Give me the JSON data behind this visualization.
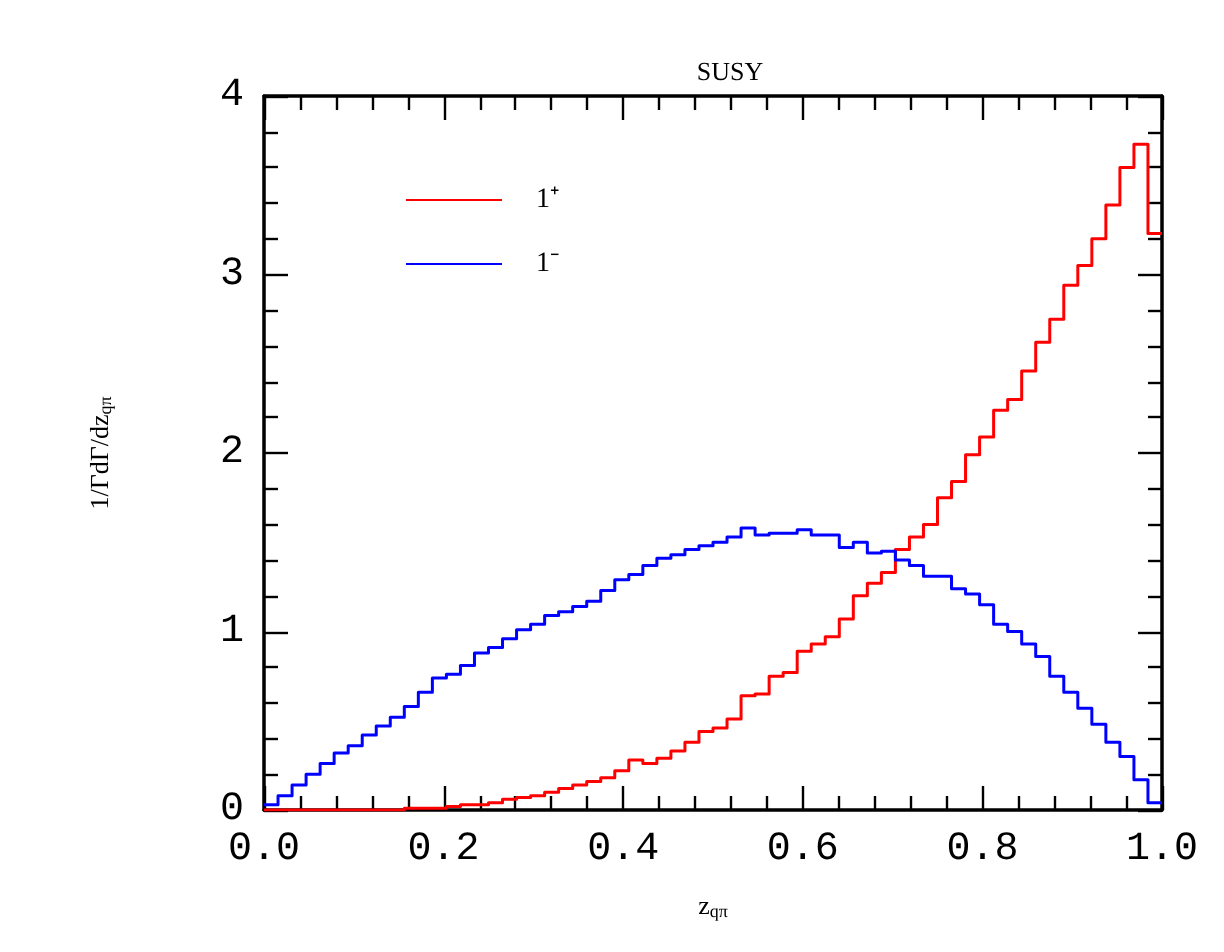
{
  "chart_data": {
    "type": "histogram",
    "title": "SUSY",
    "xlabel": "z$_{qπ}$",
    "ylabel": "1/ΓdΓ/dz$_{qπ}$",
    "bins": [
      0,
      0.015625,
      0.03125,
      0.046875,
      0.0625,
      0.078125,
      0.09375,
      0.109375,
      0.125,
      0.140625,
      0.15625,
      0.171875,
      0.1875,
      0.203125,
      0.21875,
      0.234375,
      0.25,
      0.265625,
      0.28125,
      0.296875,
      0.3125,
      0.328125,
      0.34375,
      0.359375,
      0.375,
      0.390625,
      0.40625,
      0.421875,
      0.4375,
      0.453125,
      0.46875,
      0.484375,
      0.5,
      0.515625,
      0.53125,
      0.546875,
      0.5625,
      0.578125,
      0.59375,
      0.609375,
      0.625,
      0.640625,
      0.65625,
      0.671875,
      0.6875,
      0.703125,
      0.71875,
      0.734375,
      0.75,
      0.765625,
      0.78125,
      0.796875,
      0.8125,
      0.828125,
      0.84375,
      0.859375,
      0.875,
      0.890625,
      0.90625,
      0.921875,
      0.9375,
      0.953125,
      0.96875,
      0.984375,
      1
    ],
    "series": [
      {
        "name": "1⁺",
        "color": "#ff0000",
        "values": [
          0,
          0,
          0,
          0,
          0,
          0,
          0,
          0,
          0,
          0,
          0.01,
          0.01,
          0.01,
          0.02,
          0.03,
          0.03,
          0.04,
          0.06,
          0.07,
          0.08,
          0.1,
          0.12,
          0.14,
          0.16,
          0.18,
          0.22,
          0.28,
          0.26,
          0.29,
          0.33,
          0.38,
          0.44,
          0.46,
          0.51,
          0.64,
          0.65,
          0.75,
          0.77,
          0.89,
          0.93,
          0.97,
          1.07,
          1.2,
          1.27,
          1.33,
          1.46,
          1.53,
          1.6,
          1.75,
          1.84,
          1.99,
          2.09,
          2.24,
          2.3,
          2.46,
          2.62,
          2.75,
          2.94,
          3.05,
          3.2,
          3.39,
          3.6,
          3.73,
          3.23
        ]
      },
      {
        "name": "1⁻",
        "color": "#0000ff",
        "values": [
          0.03,
          0.08,
          0.14,
          0.2,
          0.26,
          0.32,
          0.36,
          0.42,
          0.47,
          0.52,
          0.58,
          0.66,
          0.74,
          0.76,
          0.81,
          0.88,
          0.91,
          0.96,
          1.01,
          1.04,
          1.09,
          1.11,
          1.14,
          1.17,
          1.23,
          1.29,
          1.32,
          1.37,
          1.41,
          1.43,
          1.46,
          1.48,
          1.5,
          1.53,
          1.58,
          1.54,
          1.55,
          1.55,
          1.57,
          1.54,
          1.54,
          1.47,
          1.5,
          1.44,
          1.45,
          1.4,
          1.37,
          1.31,
          1.31,
          1.24,
          1.21,
          1.15,
          1.04,
          1,
          0.93,
          0.86,
          0.75,
          0.66,
          0.57,
          0.48,
          0.38,
          0.3,
          0.17,
          0.04
        ]
      }
    ],
    "xlim": [
      0,
      1
    ],
    "xticks": [
      {
        "value": 0,
        "label": "0.0"
      },
      {
        "value": 0.04,
        "label": null
      },
      {
        "value": 0.08,
        "label": null
      },
      {
        "value": 0.12,
        "label": null
      },
      {
        "value": 0.16,
        "label": null
      },
      {
        "value": 0.2,
        "label": "0.2"
      },
      {
        "value": 0.24,
        "label": null
      },
      {
        "value": 0.28,
        "label": null
      },
      {
        "value": 0.32,
        "label": null
      },
      {
        "value": 0.36,
        "label": null
      },
      {
        "value": 0.4,
        "label": "0.4"
      },
      {
        "value": 0.44,
        "label": null
      },
      {
        "value": 0.48,
        "label": null
      },
      {
        "value": 0.52,
        "label": null
      },
      {
        "value": 0.56,
        "label": null
      },
      {
        "value": 0.6,
        "label": "0.6"
      },
      {
        "value": 0.64,
        "label": null
      },
      {
        "value": 0.68,
        "label": null
      },
      {
        "value": 0.72,
        "label": null
      },
      {
        "value": 0.76,
        "label": null
      },
      {
        "value": 0.8,
        "label": "0.8"
      },
      {
        "value": 0.84,
        "label": null
      },
      {
        "value": 0.88,
        "label": null
      },
      {
        "value": 0.92,
        "label": null
      },
      {
        "value": 0.96,
        "label": null
      },
      {
        "value": 1,
        "label": "1.0"
      }
    ],
    "ylim": [
      0,
      4
    ],
    "yticks": [
      0,
      {
        "value": 0.2,
        "label": null
      },
      {
        "value": 0.4,
        "label": null
      },
      {
        "value": 0.6,
        "label": null
      },
      {
        "value": 0.8,
        "label": null
      },
      1,
      {
        "value": 1.2,
        "label": null
      },
      {
        "value": 1.4,
        "label": null
      },
      {
        "value": 1.6,
        "label": null
      },
      {
        "value": 1.8,
        "label": null
      },
      2,
      {
        "value": 2.2,
        "label": null
      },
      {
        "value": 2.4,
        "label": null
      },
      {
        "value": 2.6,
        "label": null
      },
      {
        "value": 2.8,
        "label": null
      },
      3,
      {
        "value": 3.2,
        "label": null
      },
      {
        "value": 3.4,
        "label": null
      },
      {
        "value": 3.6,
        "label": null
      },
      {
        "value": 3.8,
        "label": null
      },
      4
    ],
    "grid": false,
    "legend": "top left",
    "line_style": "solid",
    "marker": "none"
  }
}
